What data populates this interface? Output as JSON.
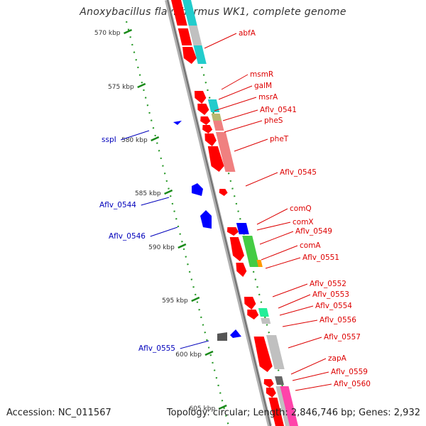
{
  "title": "Anoxybacillus flavithermus WK1, complete genome",
  "accession": "Accession: NC_011567",
  "topology": "Topology: circular; Length: 2,846,746 bp; Genes: 2,932",
  "colors": {
    "backbone": "#8c8c8c",
    "tick": "#1a8a1a",
    "dots": "#2a9a2a",
    "label_forward": "#dd0000",
    "label_reverse": "#0000bb",
    "cds_red": "#ff0000",
    "blue": "#0000ff",
    "cyan": "#22cccc",
    "grey": "#c0c0c0",
    "pink": "#f08080",
    "olive": "#b8b870",
    "green": "#44cc44",
    "orange": "#ff9900",
    "mint": "#22ee99",
    "magenta": "#ff44aa"
  },
  "kbp_ticks": [
    "570 kbp",
    "575 kbp",
    "580 kbp",
    "585 kbp",
    "590 kbp",
    "595 kbp",
    "600 kbp",
    "605 kbp"
  ],
  "forward_genes": [
    "abfA",
    "msmR",
    "galM",
    "msrA",
    "Aflv_0541",
    "pheS",
    "pheT",
    "Aflv_0545",
    "comQ",
    "comX",
    "Aflv_0549",
    "comA",
    "Aflv_0551",
    "Aflv_0552",
    "Aflv_0553",
    "Aflv_0554",
    "Aflv_0556",
    "Aflv_0557",
    "zapA",
    "Aflv_0559",
    "Aflv_0560"
  ],
  "reverse_genes": [
    "sspI",
    "Aflv_0544",
    "Aflv_0546",
    "Aflv_0555"
  ]
}
